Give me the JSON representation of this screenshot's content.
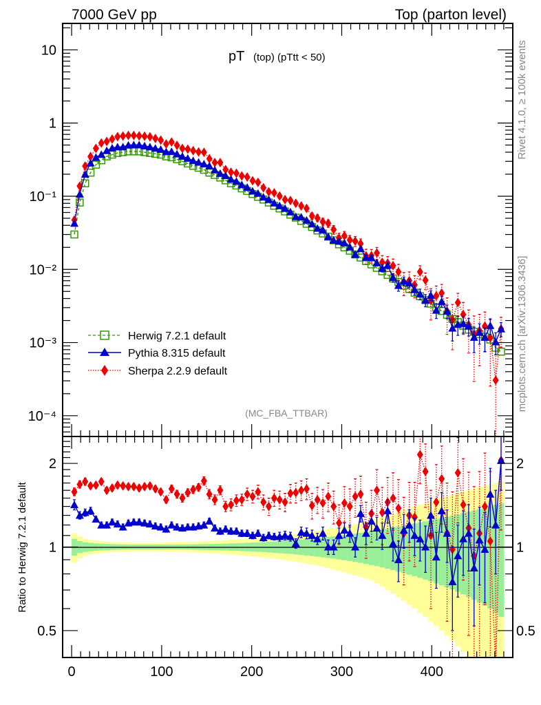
{
  "header": {
    "left": "7000 GeV pp",
    "right": "Top (parton level)"
  },
  "side_text": {
    "rivet": "Rivet 4.1.0, ≥ 100k events",
    "mcplots": "mcplots.cern.ch [arXiv:1306.3436]"
  },
  "chart_data": [
    {
      "type": "line",
      "panel": "main",
      "title": "pT (top) (pTtt < 50)",
      "title_main": "pT",
      "title_sub": "(top) (pTtt < 50)",
      "analysis_label": "(MC_FBA_TTBAR)",
      "xlabel": "",
      "ylabel": "",
      "yscale": "log",
      "xlim": [
        -10,
        490
      ],
      "ylim": [
        5.2e-05,
        23
      ],
      "y_tick_labels": [
        "10",
        "1",
        "10⁻¹",
        "10⁻²",
        "10⁻³",
        "10⁻⁴"
      ],
      "y_tick_values": [
        10,
        1,
        0.1,
        0.01,
        0.001,
        0.0001
      ],
      "legend_position": "lower-left",
      "x": [
        3,
        9,
        15,
        21,
        27,
        33,
        39,
        45,
        51,
        57,
        63,
        69,
        75,
        81,
        87,
        93,
        99,
        105,
        111,
        117,
        123,
        129,
        135,
        141,
        147,
        153,
        159,
        165,
        171,
        177,
        183,
        189,
        195,
        201,
        207,
        213,
        219,
        225,
        231,
        237,
        243,
        249,
        255,
        261,
        267,
        273,
        279,
        285,
        291,
        297,
        303,
        309,
        315,
        321,
        327,
        333,
        339,
        345,
        351,
        357,
        363,
        369,
        375,
        381,
        387,
        393,
        399,
        405,
        411,
        417,
        423,
        429,
        435,
        441,
        447,
        453,
        459,
        465,
        471,
        477
      ],
      "series": [
        {
          "name": "Herwig 7.2.1 default",
          "color": "#339900",
          "marker": "open-square",
          "line": "dashed",
          "values": [
            0.03,
            0.082,
            0.15,
            0.21,
            0.27,
            0.31,
            0.35,
            0.37,
            0.39,
            0.4,
            0.41,
            0.41,
            0.41,
            0.4,
            0.39,
            0.38,
            0.37,
            0.35,
            0.34,
            0.32,
            0.3,
            0.28,
            0.26,
            0.245,
            0.23,
            0.21,
            0.195,
            0.18,
            0.165,
            0.15,
            0.14,
            0.128,
            0.118,
            0.107,
            0.098,
            0.09,
            0.082,
            0.074,
            0.068,
            0.062,
            0.056,
            0.051,
            0.046,
            0.042,
            0.038,
            0.034,
            0.031,
            0.028,
            0.025,
            0.022,
            0.02,
            0.018,
            0.016,
            0.0145,
            0.013,
            0.0117,
            0.0105,
            0.0094,
            0.0084,
            0.0075,
            0.0067,
            0.006,
            0.0054,
            0.0048,
            0.0043,
            0.0038,
            0.0034,
            0.003,
            0.0027,
            0.0024,
            0.0021,
            0.0019,
            0.0017,
            0.0015,
            0.0014,
            0.0013,
            0.0012,
            0.0011,
            0.00085,
            0.00075
          ]
        },
        {
          "name": "Pythia 8.315 default",
          "color": "#0000cc",
          "marker": "filled-triangle",
          "line": "solid"
        },
        {
          "name": "Sherpa 2.2.9 default",
          "color": "#ee0000",
          "marker": "filled-diamond",
          "line": "dotted"
        }
      ]
    },
    {
      "type": "line",
      "panel": "ratio",
      "ylabel": "Ratio to Herwig 7.2.1 default",
      "yscale": "log",
      "xlim": [
        -10,
        490
      ],
      "ylim": [
        0.4,
        2.5
      ],
      "x_tick_labels": [
        "0",
        "100",
        "200",
        "300",
        "400"
      ],
      "x_tick_values": [
        0,
        100,
        200,
        300,
        400
      ],
      "y_tick_labels": [
        "2",
        "1",
        "0.5"
      ],
      "y_tick_values": [
        2,
        1,
        0.5
      ],
      "reference_line": 1,
      "series": [
        {
          "name": "Pythia 8.315 default",
          "color": "#0000cc",
          "values": [
            1.42,
            1.3,
            1.33,
            1.35,
            1.26,
            1.2,
            1.2,
            1.23,
            1.21,
            1.18,
            1.22,
            1.23,
            1.23,
            1.22,
            1.21,
            1.19,
            1.18,
            1.16,
            1.2,
            1.18,
            1.17,
            1.18,
            1.18,
            1.19,
            1.2,
            1.24,
            1.17,
            1.14,
            1.16,
            1.14,
            1.14,
            1.12,
            1.12,
            1.1,
            1.12,
            1.08,
            1.1,
            1.09,
            1.09,
            1.1,
            1.09,
            1.03,
            1.13,
            1.12,
            1.1,
            1.07,
            1.12,
            1.0,
            1.0,
            1.1,
            1.15,
            1.12,
            1.0,
            1.32,
            1.12,
            1.24,
            1.17,
            1.1,
            1.35,
            1.03,
            0.9,
            1.15,
            1.2,
            1.1,
            1.07,
            1.0,
            1.3,
            0.92,
            1.35,
            1.12,
            0.75,
            0.93,
            1.07,
            1.12,
            0.84,
            1.06,
            0.98,
            1.55,
            1.2,
            2.05
          ],
          "errors": [
            0.06,
            0.04,
            0.04,
            0.04,
            0.03,
            0.03,
            0.03,
            0.03,
            0.03,
            0.03,
            0.03,
            0.03,
            0.03,
            0.03,
            0.03,
            0.03,
            0.03,
            0.03,
            0.03,
            0.03,
            0.03,
            0.03,
            0.03,
            0.03,
            0.03,
            0.03,
            0.03,
            0.03,
            0.03,
            0.03,
            0.03,
            0.03,
            0.03,
            0.03,
            0.03,
            0.03,
            0.03,
            0.03,
            0.04,
            0.04,
            0.04,
            0.04,
            0.05,
            0.05,
            0.05,
            0.05,
            0.06,
            0.06,
            0.06,
            0.07,
            0.07,
            0.08,
            0.08,
            0.09,
            0.1,
            0.1,
            0.11,
            0.12,
            0.13,
            0.14,
            0.15,
            0.16,
            0.16,
            0.17,
            0.18,
            0.19,
            0.2,
            0.21,
            0.22,
            0.24,
            0.25,
            0.27,
            0.28,
            0.3,
            0.32,
            0.33,
            0.35,
            0.37,
            0.4,
            0.45
          ]
        },
        {
          "name": "Sherpa 2.2.9 default",
          "color": "#ee0000",
          "values": [
            1.58,
            1.68,
            1.72,
            1.66,
            1.67,
            1.72,
            1.6,
            1.63,
            1.67,
            1.66,
            1.65,
            1.65,
            1.63,
            1.65,
            1.66,
            1.62,
            1.58,
            1.48,
            1.62,
            1.55,
            1.5,
            1.57,
            1.61,
            1.64,
            1.73,
            1.55,
            1.48,
            1.6,
            1.4,
            1.42,
            1.47,
            1.48,
            1.55,
            1.52,
            1.58,
            1.45,
            1.4,
            1.5,
            1.48,
            1.45,
            1.56,
            1.57,
            1.6,
            1.62,
            1.41,
            1.48,
            1.44,
            1.52,
            1.4,
            1.22,
            1.44,
            1.4,
            1.52,
            1.55,
            1.18,
            1.32,
            1.6,
            1.33,
            1.45,
            1.5,
            1.38,
            1.12,
            1.3,
            1.28,
            2.15,
            1.87,
            1.1,
            1.45,
            1.76,
            1.12,
            0.98,
            1.85,
            1.42,
            1.17,
            0.93,
            1.12,
            1.4,
            1.05,
            0.36,
            2.05
          ],
          "errors": [
            0.05,
            0.05,
            0.05,
            0.04,
            0.04,
            0.04,
            0.04,
            0.04,
            0.04,
            0.04,
            0.04,
            0.04,
            0.04,
            0.04,
            0.04,
            0.04,
            0.04,
            0.04,
            0.05,
            0.05,
            0.05,
            0.05,
            0.05,
            0.05,
            0.06,
            0.06,
            0.06,
            0.06,
            0.06,
            0.07,
            0.07,
            0.07,
            0.08,
            0.08,
            0.09,
            0.09,
            0.1,
            0.1,
            0.11,
            0.11,
            0.12,
            0.13,
            0.13,
            0.14,
            0.15,
            0.16,
            0.17,
            0.18,
            0.19,
            0.2,
            0.21,
            0.22,
            0.24,
            0.25,
            0.27,
            0.28,
            0.3,
            0.31,
            0.33,
            0.35,
            0.37,
            0.39,
            0.41,
            0.43,
            0.46,
            0.48,
            0.5,
            0.53,
            0.55,
            0.58,
            0.6,
            0.63,
            0.66,
            0.69,
            0.72,
            0.75,
            0.78,
            0.82,
            0.86,
            0.9
          ]
        }
      ],
      "bands": {
        "stat_color": "#99ee99",
        "total_color": "#ffff99",
        "stat_halfwidth": [
          0.07,
          0.05,
          0.04,
          0.035,
          0.03,
          0.028,
          0.026,
          0.024,
          0.022,
          0.021,
          0.02,
          0.02,
          0.02,
          0.02,
          0.02,
          0.02,
          0.02,
          0.02,
          0.02,
          0.02,
          0.02,
          0.021,
          0.022,
          0.023,
          0.024,
          0.025,
          0.026,
          0.027,
          0.028,
          0.03,
          0.031,
          0.033,
          0.035,
          0.037,
          0.039,
          0.041,
          0.044,
          0.047,
          0.05,
          0.053,
          0.056,
          0.06,
          0.064,
          0.068,
          0.072,
          0.077,
          0.082,
          0.087,
          0.092,
          0.098,
          0.104,
          0.11,
          0.117,
          0.124,
          0.131,
          0.139,
          0.147,
          0.156,
          0.165,
          0.175,
          0.185,
          0.195,
          0.205,
          0.215,
          0.226,
          0.237,
          0.248,
          0.26,
          0.272,
          0.284,
          0.296,
          0.31,
          0.325,
          0.34,
          0.355,
          0.37,
          0.385,
          0.4,
          0.42,
          0.44
        ],
        "total_halfwidth": [
          0.12,
          0.09,
          0.07,
          0.06,
          0.055,
          0.05,
          0.045,
          0.042,
          0.04,
          0.038,
          0.036,
          0.035,
          0.035,
          0.035,
          0.035,
          0.035,
          0.036,
          0.037,
          0.038,
          0.039,
          0.04,
          0.042,
          0.044,
          0.046,
          0.048,
          0.05,
          0.052,
          0.055,
          0.058,
          0.061,
          0.064,
          0.067,
          0.071,
          0.075,
          0.079,
          0.083,
          0.088,
          0.093,
          0.098,
          0.103,
          0.109,
          0.115,
          0.122,
          0.129,
          0.136,
          0.144,
          0.152,
          0.16,
          0.17,
          0.18,
          0.19,
          0.2,
          0.21,
          0.22,
          0.23,
          0.24,
          0.26,
          0.28,
          0.3,
          0.32,
          0.34,
          0.36,
          0.38,
          0.4,
          0.42,
          0.44,
          0.46,
          0.48,
          0.5,
          0.52,
          0.54,
          0.56,
          0.58,
          0.6,
          0.62,
          0.64,
          0.66,
          0.68,
          0.7,
          0.72
        ]
      }
    }
  ]
}
